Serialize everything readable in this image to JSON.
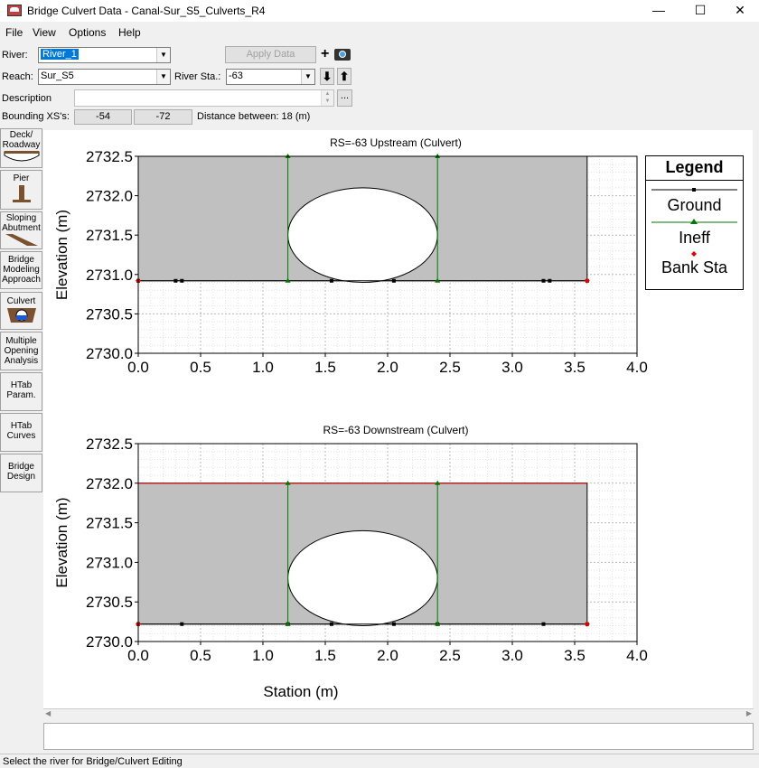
{
  "window": {
    "title": "Bridge Culvert Data - Canal-Sur_S5_Culverts_R4",
    "min": "—",
    "max": "☐",
    "close": "✕"
  },
  "menu": [
    "File",
    "View",
    "Options",
    "Help"
  ],
  "form": {
    "river_label": "River:",
    "river_value": "River_1",
    "reach_label": "Reach:",
    "reach_value": "Sur_S5",
    "river_sta_label": "River Sta.:",
    "river_sta_value": "-63",
    "apply_label": "Apply Data",
    "description_label": "Description",
    "bounding_label": "Bounding XS's:",
    "bounding_up": "-54",
    "bounding_down": "-72",
    "distance_text": "Distance between: 18 (m)",
    "ellipsis": "..."
  },
  "sidebar": [
    {
      "label": "Deck/\nRoadway",
      "icon": "deck-icon"
    },
    {
      "label": "Pier",
      "icon": "pier-icon"
    },
    {
      "label": "Sloping\nAbutment",
      "icon": "abutment-icon"
    },
    {
      "label": "Bridge\nModeling\nApproach",
      "icon": ""
    },
    {
      "label": "Culvert",
      "icon": "culvert-icon"
    },
    {
      "label": "Multiple\nOpening\nAnalysis",
      "icon": ""
    },
    {
      "label": "HTab\nParam.",
      "icon": ""
    },
    {
      "label": "HTab\nCurves",
      "icon": ""
    },
    {
      "label": "Bridge\nDesign",
      "icon": ""
    }
  ],
  "legend": {
    "title": "Legend",
    "items": [
      "Ground",
      "Ineff",
      "Bank Sta"
    ]
  },
  "status": "Select the river for Bridge/Culvert Editing",
  "chart_data": [
    {
      "type": "line",
      "title": "RS=-63     Upstream  (Culvert)",
      "xlabel": "",
      "ylabel": "Elevation (m)",
      "xlim": [
        0,
        4
      ],
      "ylim": [
        2730.0,
        2732.5
      ],
      "xticks": [
        "0.0",
        "0.5",
        "1.0",
        "1.5",
        "2.0",
        "2.5",
        "3.0",
        "3.5",
        "4.0"
      ],
      "yticks": [
        "2730.0",
        "2730.5",
        "2731.0",
        "2731.5",
        "2732.0",
        "2732.5"
      ],
      "deck_top": 2732.5,
      "ground": 2730.92,
      "x_start": 0.0,
      "x_end": 3.6,
      "culvert": {
        "cx": 1.8,
        "cy": 2731.5,
        "rx": 0.6,
        "ry": 0.6
      },
      "ground_points_x": [
        0.0,
        0.3,
        0.35,
        1.55,
        2.05,
        3.25,
        3.3,
        3.6
      ],
      "ineff": [
        {
          "x": 1.2,
          "top": 2732.5
        },
        {
          "x": 2.4,
          "top": 2732.5
        }
      ],
      "bank_sta_x": [
        0.0,
        3.6
      ],
      "grid": true
    },
    {
      "type": "line",
      "title": "RS=-63     Downstream  (Culvert)",
      "xlabel": "Station (m)",
      "ylabel": "Elevation (m)",
      "xlim": [
        0,
        4
      ],
      "ylim": [
        2730.0,
        2732.5
      ],
      "xticks": [
        "0.0",
        "0.5",
        "1.0",
        "1.5",
        "2.0",
        "2.5",
        "3.0",
        "3.5",
        "4.0"
      ],
      "yticks": [
        "2730.0",
        "2730.5",
        "2731.0",
        "2731.5",
        "2732.0",
        "2732.5"
      ],
      "deck_top": 2732.0,
      "ground": 2730.22,
      "x_start": 0.0,
      "x_end": 3.6,
      "culvert": {
        "cx": 1.8,
        "cy": 2730.8,
        "rx": 0.6,
        "ry": 0.6
      },
      "ground_points_x": [
        0.0,
        0.35,
        1.2,
        1.55,
        2.05,
        2.4,
        3.25,
        3.6
      ],
      "ineff": [
        {
          "x": 1.2,
          "top": 2732.0
        },
        {
          "x": 2.4,
          "top": 2732.0
        }
      ],
      "bank_sta_x": [
        0.0,
        3.6
      ],
      "grid": true
    }
  ]
}
